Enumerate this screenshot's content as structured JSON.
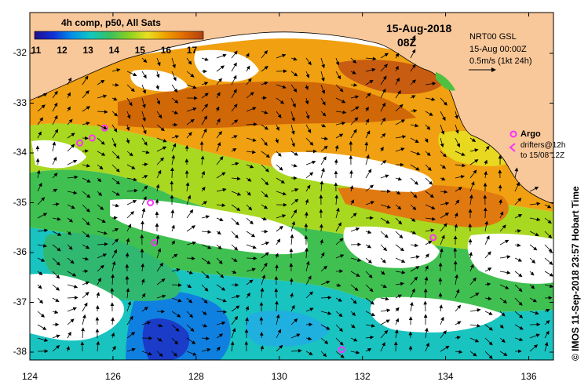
{
  "map": {
    "date": "15-Aug-2018",
    "time": "08Z",
    "colorbar": {
      "title": "4h comp, p50, All Sats",
      "ticks": [
        "11",
        "12",
        "13",
        "14",
        "15",
        "16",
        "17"
      ],
      "min": 11,
      "max": 17.5,
      "colors": [
        "#20108a",
        "#1030d8",
        "#0090e8",
        "#10c8c0",
        "#38c060",
        "#88d020",
        "#e8e020",
        "#f0a000",
        "#e06800",
        "#b04010"
      ]
    },
    "current_info": [
      "NRT00 GSL",
      "15-Aug 00:00Z",
      "0.5m/s (1kt 24h)"
    ],
    "argo_label": "Argo",
    "drifters_label": [
      "drifters@12h",
      "to 15/08 12Z"
    ],
    "credit": "© IMOS 11-Sep-2018 23:57 Hobart Time",
    "lat_ticks": [
      "-32",
      "-33",
      "-34",
      "-35",
      "-36",
      "-37",
      "-38"
    ],
    "lon_ticks": [
      "124",
      "126",
      "128",
      "130",
      "132",
      "134",
      "136"
    ],
    "lon_range": [
      124,
      136.5
    ],
    "lat_range": [
      -38.1,
      -31.4
    ],
    "land_color": "#f9c89a",
    "argo_color": "#ff30ff",
    "argo_floats": [
      {
        "lon": 125.2,
        "lat": -33.8
      },
      {
        "lon": 125.5,
        "lat": -33.7
      },
      {
        "lon": 125.8,
        "lat": -33.5
      },
      {
        "lon": 126.9,
        "lat": -35.0
      },
      {
        "lon": 127.0,
        "lat": -35.8
      },
      {
        "lon": 133.7,
        "lat": -35.7
      },
      {
        "lon": 131.5,
        "lat": -37.95
      }
    ]
  }
}
